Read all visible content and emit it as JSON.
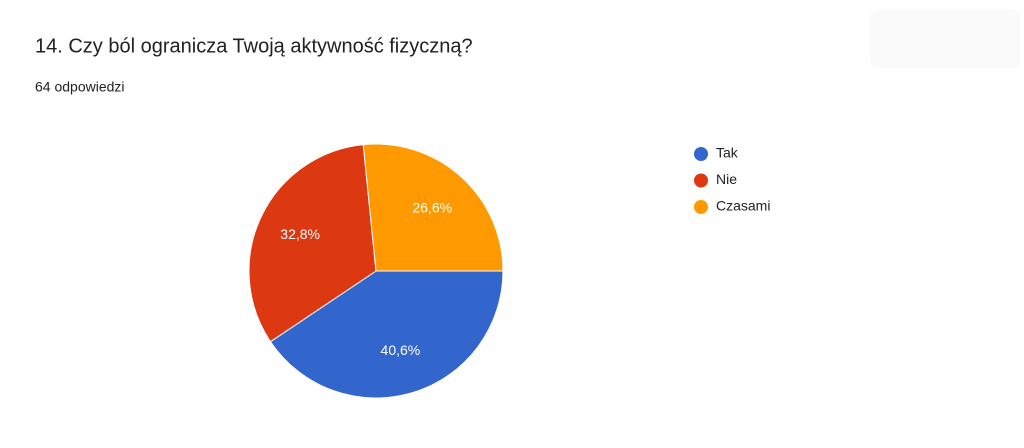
{
  "chart_data": {
    "type": "pie",
    "title": "14. Czy ból ogranicza Twoją aktywność fizyczną?",
    "subtitle": "64 odpowiedzi",
    "categories": [
      "Tak",
      "Nie",
      "Czasami"
    ],
    "values": [
      40.6,
      32.8,
      26.6
    ],
    "value_labels": [
      "40,6%",
      "32,8%",
      "26,6%"
    ],
    "colors": [
      "#3366cc",
      "#dc3912",
      "#ff9900"
    ]
  }
}
